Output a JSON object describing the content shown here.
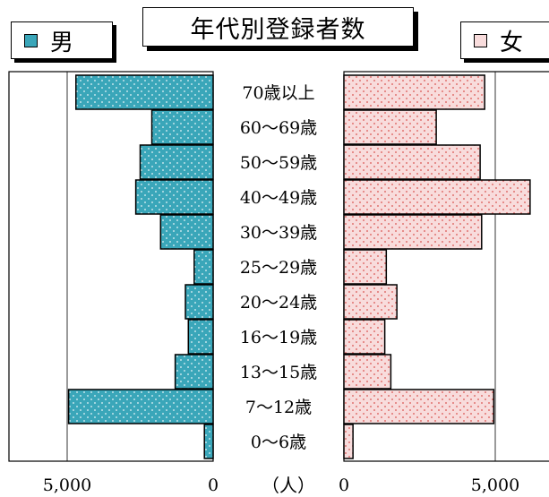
{
  "chart_data": {
    "type": "bar",
    "orientation": "horizontal-butterfly",
    "title": "年代別登録者数",
    "unit_label": "（人）",
    "categories": [
      "70歳以上",
      "60～69歳",
      "50～59歳",
      "40～49歳",
      "30～39歳",
      "25～29歳",
      "20～24歳",
      "16～19歳",
      "13～15歳",
      "7～12歳",
      "0～6歳"
    ],
    "series": [
      {
        "name": "男",
        "side": "left",
        "color": "#3aa6b9",
        "dot_color": "#e8f6f8",
        "values": [
          4700,
          2100,
          2500,
          2650,
          1800,
          650,
          950,
          850,
          1300,
          4950,
          300
        ]
      },
      {
        "name": "女",
        "side": "right",
        "color": "#f8dcdc",
        "dot_color": "#d9534f",
        "values": [
          4650,
          3050,
          4500,
          6150,
          4550,
          1400,
          1750,
          1350,
          1550,
          4950,
          300
        ]
      }
    ],
    "male_axis": {
      "ticks": [
        5000,
        0
      ],
      "tick_labels": [
        "5,000",
        "0"
      ]
    },
    "female_axis": {
      "ticks": [
        0,
        5000
      ],
      "tick_labels": [
        "0",
        "5,000"
      ]
    },
    "grid": "vertical line at 5,000 on each side"
  }
}
